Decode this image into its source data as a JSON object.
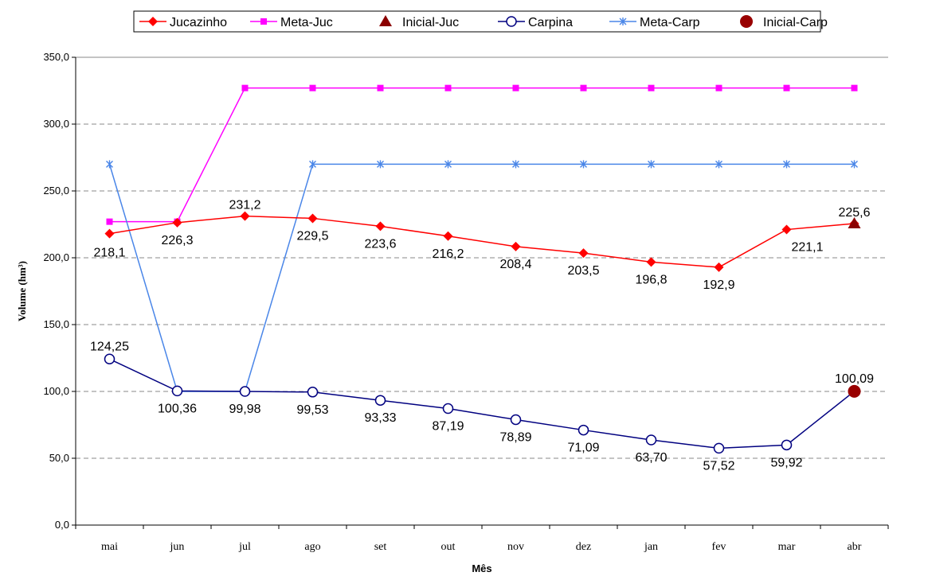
{
  "chart_data": {
    "type": "line",
    "xlabel": "Mês",
    "ylabel": "Volume (hm³)",
    "ylim": [
      0,
      350
    ],
    "y_ticks": [
      "0,0",
      "50,0",
      "100,0",
      "150,0",
      "200,0",
      "250,0",
      "300,0",
      "350,0"
    ],
    "categories": [
      "mai",
      "jun",
      "jul",
      "ago",
      "set",
      "out",
      "nov",
      "dez",
      "jan",
      "fev",
      "mar",
      "abr"
    ],
    "grid": "horizontal dashed",
    "legend_position": "top",
    "series": [
      {
        "name": "Jucazinho",
        "color": "#ff0000",
        "marker": "diamond",
        "values": [
          218.1,
          226.3,
          231.2,
          229.5,
          223.6,
          216.2,
          208.4,
          203.5,
          196.8,
          192.9,
          221.1,
          225.6
        ],
        "labels": [
          "218,1",
          "226,3",
          "231,2",
          "229,5",
          "223,6",
          "216,2",
          "208,4",
          "203,5",
          "196,8",
          "192,9",
          "221,1",
          "225,6"
        ]
      },
      {
        "name": "Meta-Juc",
        "color": "#ff00ff",
        "marker": "square",
        "values": [
          227,
          227,
          327,
          327,
          327,
          327,
          327,
          327,
          327,
          327,
          327,
          327
        ]
      },
      {
        "name": "Inicial-Juc",
        "color": "#8b0000",
        "marker": "triangle",
        "values": [
          null,
          null,
          null,
          null,
          null,
          null,
          null,
          null,
          null,
          null,
          null,
          225.6
        ]
      },
      {
        "name": "Carpina",
        "color": "#000080",
        "marker": "circle-open",
        "values": [
          124.25,
          100.36,
          99.98,
          99.53,
          93.33,
          87.19,
          78.89,
          71.09,
          63.7,
          57.52,
          59.92,
          100.09
        ],
        "labels": [
          "124,25",
          "100,36",
          "99,98",
          "99,53",
          "93,33",
          "87,19",
          "78,89",
          "71,09",
          "63,70",
          "57,52",
          "59,92",
          "100,09"
        ]
      },
      {
        "name": "Meta-Carp",
        "color": "#4a86e8",
        "marker": "star",
        "values": [
          270,
          100,
          100,
          270,
          270,
          270,
          270,
          270,
          270,
          270,
          270,
          270
        ]
      },
      {
        "name": "Inicial-Carp",
        "color": "#990000",
        "marker": "circle-filled",
        "values": [
          null,
          null,
          null,
          null,
          null,
          null,
          null,
          null,
          null,
          null,
          null,
          100.09
        ]
      }
    ]
  }
}
